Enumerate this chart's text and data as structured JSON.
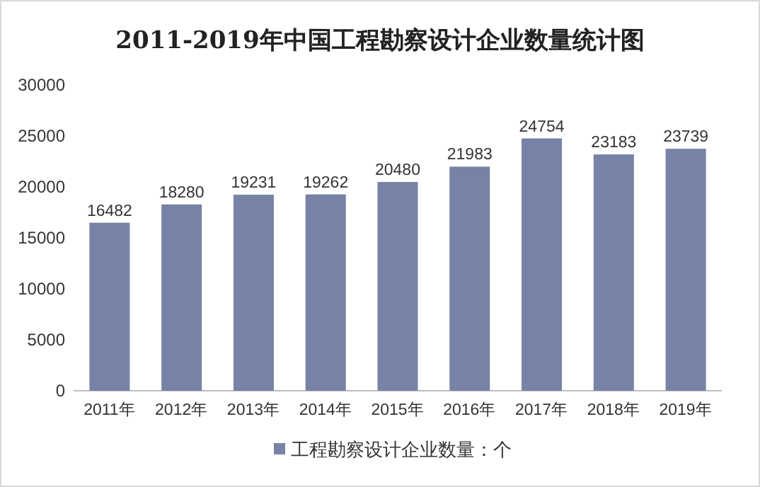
{
  "chart_data": {
    "type": "bar",
    "title": "2011-2019年中国工程勘察设计企业数量统计图",
    "categories": [
      "2011年",
      "2012年",
      "2013年",
      "2014年",
      "2015年",
      "2016年",
      "2017年",
      "2018年",
      "2019年"
    ],
    "series": [
      {
        "name": "工程勘察设计企业数量：个",
        "color": "#7782a6",
        "values": [
          16482,
          18280,
          19231,
          19262,
          20480,
          21983,
          24754,
          23183,
          23739
        ]
      }
    ],
    "ylim": [
      0,
      30000
    ],
    "yticks": [
      0,
      5000,
      10000,
      15000,
      20000,
      25000,
      30000
    ],
    "data_labels": true,
    "legend": "bottom",
    "grid": false
  }
}
